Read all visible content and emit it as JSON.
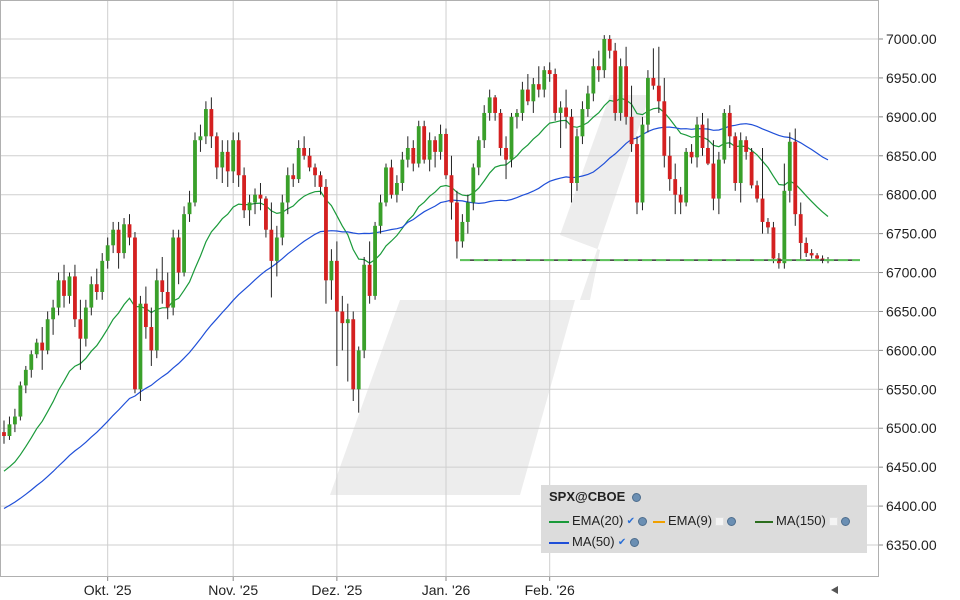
{
  "chart_data": {
    "type": "candlestick",
    "symbol": "SPX@CBOE",
    "y_ticks": [
      "7000.00",
      "6950.00",
      "6900.00",
      "6850.00",
      "6800.00",
      "6750.00",
      "6700.00",
      "6650.00",
      "6600.00",
      "6550.00",
      "6500.00",
      "6450.00",
      "6400.00",
      "6350.00"
    ],
    "ylim": [
      6330,
      7020
    ],
    "x_ticks": [
      {
        "label": "Okt. '25",
        "index": 19
      },
      {
        "label": "Nov. '25",
        "index": 42
      },
      {
        "label": "Dez. '25",
        "index": 61
      },
      {
        "label": "Jan. '26",
        "index": 81
      },
      {
        "label": "Feb. '26",
        "index": 100
      }
    ],
    "candles": [
      [
        6495,
        6510,
        6480,
        6490
      ],
      [
        6490,
        6515,
        6485,
        6505
      ],
      [
        6505,
        6525,
        6495,
        6515
      ],
      [
        6515,
        6560,
        6510,
        6555
      ],
      [
        6555,
        6580,
        6545,
        6575
      ],
      [
        6575,
        6600,
        6565,
        6595
      ],
      [
        6595,
        6615,
        6590,
        6610
      ],
      [
        6610,
        6630,
        6575,
        6600
      ],
      [
        6600,
        6650,
        6595,
        6640
      ],
      [
        6640,
        6665,
        6620,
        6655
      ],
      [
        6655,
        6700,
        6645,
        6690
      ],
      [
        6690,
        6710,
        6655,
        6670
      ],
      [
        6670,
        6700,
        6660,
        6695
      ],
      [
        6695,
        6710,
        6630,
        6640
      ],
      [
        6640,
        6665,
        6575,
        6615
      ],
      [
        6615,
        6665,
        6605,
        6655
      ],
      [
        6655,
        6695,
        6645,
        6685
      ],
      [
        6685,
        6705,
        6665,
        6675
      ],
      [
        6675,
        6725,
        6665,
        6715
      ],
      [
        6715,
        6745,
        6705,
        6735
      ],
      [
        6735,
        6765,
        6725,
        6755
      ],
      [
        6755,
        6765,
        6705,
        6725
      ],
      [
        6725,
        6770,
        6718,
        6762
      ],
      [
        6762,
        6775,
        6735,
        6745
      ],
      [
        6745,
        6752,
        6545,
        6550
      ],
      [
        6550,
        6670,
        6535,
        6660
      ],
      [
        6660,
        6682,
        6615,
        6630
      ],
      [
        6630,
        6655,
        6580,
        6600
      ],
      [
        6600,
        6705,
        6590,
        6690
      ],
      [
        6690,
        6720,
        6660,
        6675
      ],
      [
        6675,
        6700,
        6640,
        6655
      ],
      [
        6655,
        6755,
        6645,
        6745
      ],
      [
        6745,
        6755,
        6685,
        6700
      ],
      [
        6700,
        6785,
        6695,
        6775
      ],
      [
        6775,
        6805,
        6765,
        6790
      ],
      [
        6790,
        6880,
        6785,
        6870
      ],
      [
        6870,
        6890,
        6855,
        6875
      ],
      [
        6875,
        6920,
        6865,
        6910
      ],
      [
        6910,
        6925,
        6860,
        6875
      ],
      [
        6875,
        6880,
        6820,
        6835
      ],
      [
        6835,
        6870,
        6815,
        6855
      ],
      [
        6855,
        6870,
        6810,
        6830
      ],
      [
        6830,
        6880,
        6815,
        6870
      ],
      [
        6870,
        6880,
        6810,
        6825
      ],
      [
        6825,
        6835,
        6770,
        6780
      ],
      [
        6780,
        6800,
        6760,
        6790
      ],
      [
        6790,
        6808,
        6775,
        6800
      ],
      [
        6800,
        6815,
        6780,
        6795
      ],
      [
        6795,
        6798,
        6745,
        6755
      ],
      [
        6755,
        6790,
        6668,
        6715
      ],
      [
        6715,
        6760,
        6695,
        6745
      ],
      [
        6745,
        6800,
        6735,
        6790
      ],
      [
        6790,
        6835,
        6775,
        6825
      ],
      [
        6825,
        6840,
        6810,
        6820
      ],
      [
        6820,
        6870,
        6815,
        6860
      ],
      [
        6860,
        6875,
        6845,
        6850
      ],
      [
        6850,
        6860,
        6830,
        6835
      ],
      [
        6835,
        6840,
        6810,
        6825
      ],
      [
        6825,
        6830,
        6800,
        6810
      ],
      [
        6810,
        6820,
        6660,
        6690
      ],
      [
        6690,
        6730,
        6665,
        6715
      ],
      [
        6715,
        6740,
        6580,
        6650
      ],
      [
        6650,
        6670,
        6600,
        6635
      ],
      [
        6635,
        6660,
        6560,
        6640
      ],
      [
        6640,
        6650,
        6535,
        6550
      ],
      [
        6550,
        6605,
        6520,
        6600
      ],
      [
        6600,
        6720,
        6590,
        6710
      ],
      [
        6710,
        6740,
        6660,
        6670
      ],
      [
        6670,
        6765,
        6665,
        6760
      ],
      [
        6760,
        6800,
        6750,
        6790
      ],
      [
        6790,
        6840,
        6785,
        6835
      ],
      [
        6835,
        6845,
        6795,
        6800
      ],
      [
        6800,
        6825,
        6790,
        6815
      ],
      [
        6815,
        6855,
        6805,
        6845
      ],
      [
        6845,
        6875,
        6835,
        6860
      ],
      [
        6860,
        6870,
        6830,
        6840
      ],
      [
        6840,
        6895,
        6835,
        6888
      ],
      [
        6888,
        6895,
        6840,
        6845
      ],
      [
        6845,
        6880,
        6830,
        6870
      ],
      [
        6870,
        6875,
        6835,
        6855
      ],
      [
        6855,
        6890,
        6845,
        6878
      ],
      [
        6878,
        6885,
        6820,
        6825
      ],
      [
        6825,
        6850,
        6768,
        6790
      ],
      [
        6790,
        6805,
        6718,
        6740
      ],
      [
        6740,
        6775,
        6732,
        6765
      ],
      [
        6765,
        6800,
        6750,
        6790
      ],
      [
        6790,
        6840,
        6780,
        6835
      ],
      [
        6835,
        6875,
        6825,
        6870
      ],
      [
        6870,
        6915,
        6860,
        6905
      ],
      [
        6905,
        6935,
        6895,
        6925
      ],
      [
        6925,
        6928,
        6895,
        6905
      ],
      [
        6905,
        6910,
        6850,
        6860
      ],
      [
        6860,
        6875,
        6820,
        6845
      ],
      [
        6845,
        6905,
        6835,
        6900
      ],
      [
        6900,
        6910,
        6885,
        6905
      ],
      [
        6905,
        6945,
        6895,
        6935
      ],
      [
        6935,
        6955,
        6915,
        6920
      ],
      [
        6920,
        6950,
        6905,
        6942
      ],
      [
        6942,
        6965,
        6925,
        6935
      ],
      [
        6935,
        6965,
        6925,
        6960
      ],
      [
        6960,
        6970,
        6945,
        6955
      ],
      [
        6955,
        6962,
        6895,
        6905
      ],
      [
        6905,
        6920,
        6860,
        6912
      ],
      [
        6912,
        6935,
        6885,
        6900
      ],
      [
        6900,
        6910,
        6790,
        6815
      ],
      [
        6815,
        6885,
        6805,
        6875
      ],
      [
        6875,
        6920,
        6865,
        6910
      ],
      [
        6910,
        6940,
        6900,
        6930
      ],
      [
        6930,
        6975,
        6920,
        6965
      ],
      [
        6965,
        6985,
        6945,
        6960
      ],
      [
        6960,
        7005,
        6950,
        7000
      ],
      [
        7000,
        7005,
        6975,
        6985
      ],
      [
        6985,
        6995,
        6895,
        6905
      ],
      [
        6905,
        6975,
        6895,
        6965
      ],
      [
        6965,
        6990,
        6890,
        6900
      ],
      [
        6900,
        6940,
        6855,
        6865
      ],
      [
        6865,
        6875,
        6775,
        6790
      ],
      [
        6790,
        6900,
        6780,
        6890
      ],
      [
        6890,
        6960,
        6880,
        6950
      ],
      [
        6950,
        6988,
        6935,
        6940
      ],
      [
        6940,
        6990,
        6905,
        6920
      ],
      [
        6920,
        6950,
        6835,
        6850
      ],
      [
        6850,
        6875,
        6805,
        6820
      ],
      [
        6820,
        6840,
        6775,
        6800
      ],
      [
        6800,
        6810,
        6775,
        6790
      ],
      [
        6790,
        6860,
        6785,
        6855
      ],
      [
        6855,
        6865,
        6840,
        6848
      ],
      [
        6848,
        6900,
        6835,
        6890
      ],
      [
        6890,
        6905,
        6850,
        6860
      ],
      [
        6860,
        6898,
        6838,
        6840
      ],
      [
        6840,
        6870,
        6780,
        6795
      ],
      [
        6795,
        6855,
        6775,
        6845
      ],
      [
        6845,
        6910,
        6840,
        6905
      ],
      [
        6905,
        6915,
        6860,
        6875
      ],
      [
        6875,
        6880,
        6805,
        6815
      ],
      [
        6815,
        6880,
        6790,
        6870
      ],
      [
        6870,
        6875,
        6845,
        6855
      ],
      [
        6855,
        6860,
        6808,
        6812
      ],
      [
        6812,
        6818,
        6790,
        6795
      ],
      [
        6795,
        6860,
        6750,
        6765
      ],
      [
        6765,
        6770,
        6750,
        6758
      ],
      [
        6758,
        6765,
        6712,
        6718
      ],
      [
        6718,
        6725,
        6705,
        6712
      ],
      [
        6712,
        6840,
        6705,
        6805
      ],
      [
        6805,
        6880,
        6790,
        6868
      ],
      [
        6868,
        6885,
        6760,
        6775
      ],
      [
        6775,
        6790,
        6715,
        6738
      ],
      [
        6738,
        6745,
        6720,
        6725
      ],
      [
        6725,
        6730,
        6718,
        6722
      ],
      [
        6722,
        6725,
        6715,
        6718
      ],
      [
        6718,
        6722,
        6712,
        6716
      ],
      [
        6716,
        6720,
        6712,
        6716
      ]
    ],
    "horizontal_line": 6716,
    "series": [
      {
        "name": "EMA(20)",
        "color": "#1a9a3a",
        "visible": true
      },
      {
        "name": "EMA(9)",
        "color": "#f0a000",
        "visible": false
      },
      {
        "name": "MA(150)",
        "color": "#2c6e1e",
        "visible": false
      },
      {
        "name": "MA(50)",
        "color": "#1f4fd8",
        "visible": true
      }
    ],
    "colors": {
      "up": "#3aa02a",
      "down": "#d42020",
      "grid": "#cfcfcf",
      "band": "#e8e8e8"
    }
  }
}
